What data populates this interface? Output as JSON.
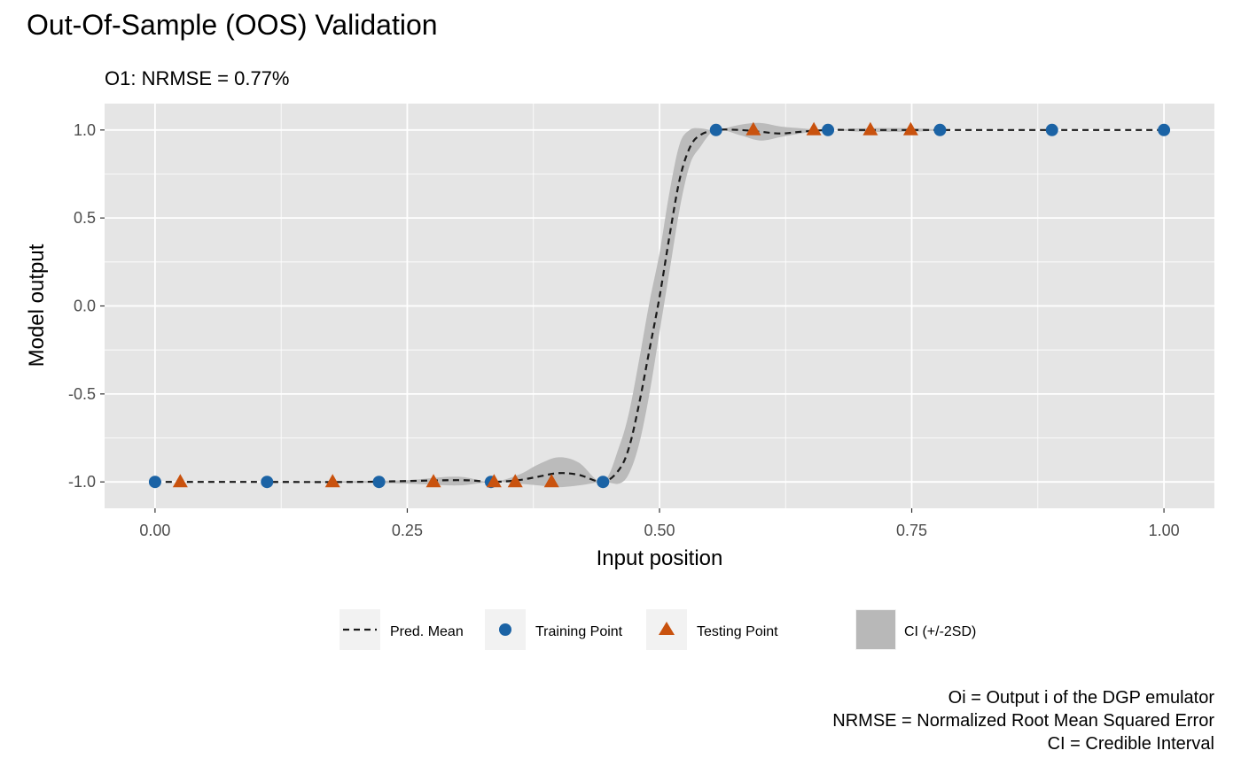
{
  "chart_data": {
    "type": "line",
    "title": "Out-Of-Sample (OOS) Validation",
    "subtitle": "O1: NRMSE = 0.77%",
    "xlabel": "Input position",
    "ylabel": "Model output",
    "xlim": [
      -0.05,
      1.05
    ],
    "ylim": [
      -1.15,
      1.15
    ],
    "x_ticks": [
      0.0,
      0.25,
      0.5,
      0.75,
      1.0
    ],
    "x_tick_labels": [
      "0.00",
      "0.25",
      "0.50",
      "0.75",
      "1.00"
    ],
    "y_ticks": [
      -1.0,
      -0.5,
      0.0,
      0.5,
      1.0
    ],
    "y_tick_labels": [
      "-1.0",
      "-0.5",
      "0.0",
      "0.5",
      "1.0"
    ],
    "grid": true,
    "legend_position": "bottom",
    "colors": {
      "panel": "#e5e5e5",
      "grid": "#ffffff",
      "mean": "#1a1a1a",
      "training": "#1b63a5",
      "testing": "#c9520e",
      "ci": "#b8b8b8"
    },
    "legend": [
      {
        "key": "mean",
        "label": "Pred. Mean"
      },
      {
        "key": "training",
        "label": "Training Point"
      },
      {
        "key": "testing",
        "label": "Testing Point"
      },
      {
        "key": "ci",
        "label": "CI (+/-2SD)"
      }
    ],
    "series": [
      {
        "name": "Pred. Mean",
        "x": [
          0.0,
          0.1,
          0.2,
          0.3,
          0.333,
          0.36,
          0.38,
          0.4,
          0.42,
          0.444,
          0.46,
          0.47,
          0.48,
          0.49,
          0.5,
          0.51,
          0.52,
          0.53,
          0.54,
          0.556,
          0.58,
          0.6,
          0.62,
          0.64,
          0.667,
          0.7,
          0.75,
          0.8,
          0.9,
          1.0
        ],
        "y": [
          -1.0,
          -1.0,
          -1.0,
          -0.99,
          -1.0,
          -0.99,
          -0.97,
          -0.95,
          -0.96,
          -1.0,
          -0.93,
          -0.8,
          -0.55,
          -0.25,
          0.05,
          0.4,
          0.72,
          0.9,
          0.97,
          1.0,
          1.0,
          0.99,
          0.98,
          0.99,
          1.0,
          1.0,
          1.0,
          1.0,
          1.0,
          1.0
        ]
      },
      {
        "name": "Training Point",
        "x": [
          0.0,
          0.111,
          0.222,
          0.333,
          0.444,
          0.556,
          0.667,
          0.778,
          0.889,
          1.0
        ],
        "y": [
          -1.0,
          -1.0,
          -1.0,
          -1.0,
          -1.0,
          1.0,
          1.0,
          1.0,
          1.0,
          1.0
        ]
      },
      {
        "name": "Testing Point",
        "x": [
          0.025,
          0.176,
          0.276,
          0.336,
          0.357,
          0.393,
          0.593,
          0.653,
          0.709,
          0.749
        ],
        "y": [
          -1.0,
          -1.0,
          -1.0,
          -1.0,
          -1.0,
          -1.0,
          1.0,
          1.0,
          1.0,
          1.0
        ]
      },
      {
        "name": "CI (+/-2SD)",
        "x": [
          0.0,
          0.1,
          0.2,
          0.25,
          0.3,
          0.333,
          0.36,
          0.38,
          0.4,
          0.42,
          0.444,
          0.46,
          0.47,
          0.48,
          0.49,
          0.5,
          0.51,
          0.52,
          0.53,
          0.54,
          0.556,
          0.58,
          0.6,
          0.62,
          0.64,
          0.667,
          0.7,
          0.75,
          0.8,
          0.9,
          1.0
        ],
        "lower": [
          -1.0,
          -1.0,
          -1.005,
          -1.01,
          -1.02,
          -1.0,
          -1.01,
          -1.02,
          -1.03,
          -1.02,
          -1.0,
          -1.01,
          -0.95,
          -0.78,
          -0.5,
          -0.15,
          0.2,
          0.55,
          0.8,
          0.9,
          1.0,
          0.97,
          0.94,
          0.96,
          0.98,
          1.0,
          0.99,
          0.99,
          1.0,
          1.0,
          1.0
        ],
        "upper": [
          -1.0,
          -1.0,
          -0.995,
          -0.99,
          -0.97,
          -1.0,
          -0.96,
          -0.9,
          -0.86,
          -0.89,
          -1.0,
          -0.8,
          -0.6,
          -0.3,
          0.02,
          0.3,
          0.65,
          0.92,
          1.0,
          1.01,
          1.0,
          1.03,
          1.04,
          1.02,
          1.01,
          1.0,
          1.01,
          1.01,
          1.0,
          1.0,
          1.0
        ]
      }
    ]
  },
  "caption": [
    "Oi = Output i of the DGP emulator",
    "NRMSE = Normalized Root Mean Squared Error",
    "CI = Credible Interval"
  ]
}
